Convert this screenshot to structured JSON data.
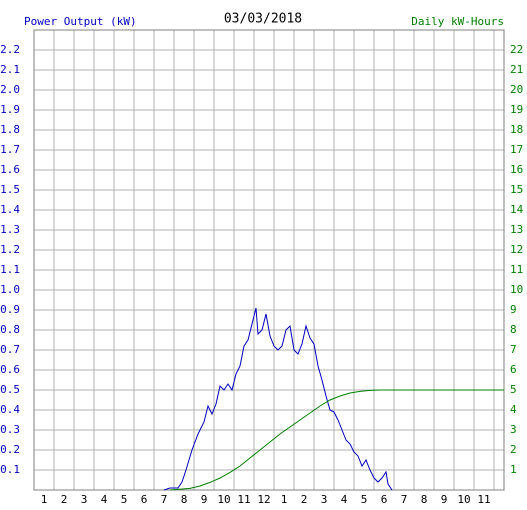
{
  "chart_data": {
    "type": "line",
    "title": "03/03/2018",
    "y_label": "Power Output (kW)",
    "y2_label": "Daily kW-Hours",
    "xlim": [
      0.5,
      24
    ],
    "ylim": [
      0,
      2.3
    ],
    "y2lim": [
      0,
      23
    ],
    "xticks": [
      1,
      2,
      3,
      4,
      5,
      6,
      7,
      8,
      9,
      10,
      11,
      12,
      {
        "value": 13,
        "label": "1"
      },
      {
        "value": 14,
        "label": "2"
      },
      {
        "value": 15,
        "label": "3"
      },
      {
        "value": 16,
        "label": "4"
      },
      {
        "value": 17,
        "label": "5"
      },
      {
        "value": 18,
        "label": "6"
      },
      {
        "value": 19,
        "label": "7"
      },
      {
        "value": 20,
        "label": "8"
      },
      {
        "value": 21,
        "label": "9"
      },
      {
        "value": 22,
        "label": "10"
      },
      {
        "value": 23,
        "label": "11"
      }
    ],
    "yticks": [
      0.1,
      0.2,
      0.3,
      0.4,
      0.5,
      0.6,
      0.7,
      0.8,
      0.9,
      {
        "value": 1,
        "label": "1.0"
      },
      1.1,
      1.2,
      1.3,
      1.4,
      1.5,
      1.6,
      1.7,
      1.8,
      1.9,
      {
        "value": 2,
        "label": "2.0"
      },
      2.1,
      2.2
    ],
    "y2ticks": [
      1,
      2,
      3,
      4,
      5,
      6,
      7,
      8,
      9,
      10,
      11,
      12,
      13,
      14,
      15,
      16,
      17,
      18,
      19,
      20,
      21,
      22
    ],
    "grid": true,
    "series": [
      {
        "name": "Power Output (kW)",
        "color": "#0000c0",
        "x": [
          7.0,
          7.3,
          7.7,
          7.9,
          8.1,
          8.4,
          8.7,
          9.0,
          9.2,
          9.4,
          9.6,
          9.8,
          10.0,
          10.2,
          10.4,
          10.6,
          10.8,
          11.0,
          11.2,
          11.4,
          11.6,
          11.7,
          11.9,
          12.1,
          12.3,
          12.5,
          12.7,
          12.9,
          13.1,
          13.3,
          13.5,
          13.7,
          13.9,
          14.1,
          14.3,
          14.5,
          14.7,
          14.9,
          15.1,
          15.3,
          15.5,
          15.7,
          15.9,
          16.1,
          16.3,
          16.5,
          16.7,
          16.9,
          17.1,
          17.3,
          17.5,
          17.7,
          17.9,
          18.1,
          18.2,
          18.4
        ],
        "values": [
          0,
          0.01,
          0.01,
          0.04,
          0.1,
          0.2,
          0.28,
          0.34,
          0.42,
          0.38,
          0.43,
          0.52,
          0.5,
          0.53,
          0.5,
          0.58,
          0.62,
          0.72,
          0.75,
          0.83,
          0.91,
          0.78,
          0.8,
          0.88,
          0.77,
          0.72,
          0.7,
          0.72,
          0.8,
          0.82,
          0.7,
          0.68,
          0.73,
          0.82,
          0.76,
          0.73,
          0.62,
          0.55,
          0.47,
          0.4,
          0.39,
          0.35,
          0.3,
          0.25,
          0.23,
          0.19,
          0.17,
          0.12,
          0.15,
          0.1,
          0.06,
          0.04,
          0.06,
          0.09,
          0.03,
          0
        ]
      },
      {
        "name": "Daily kW-Hours",
        "color": "#008000",
        "axis": "y2",
        "x": [
          7.3,
          8.3,
          8.8,
          9.3,
          9.8,
          10.3,
          10.8,
          11.3,
          11.8,
          12.3,
          12.8,
          13.3,
          13.8,
          14.3,
          14.8,
          15.3,
          15.8,
          16.3,
          16.8,
          17.3,
          17.8,
          24
        ],
        "values": [
          0,
          0.08,
          0.2,
          0.38,
          0.6,
          0.88,
          1.2,
          1.6,
          2.0,
          2.4,
          2.8,
          3.15,
          3.5,
          3.85,
          4.2,
          4.5,
          4.7,
          4.85,
          4.93,
          4.98,
          5.0,
          5.0
        ]
      }
    ]
  }
}
